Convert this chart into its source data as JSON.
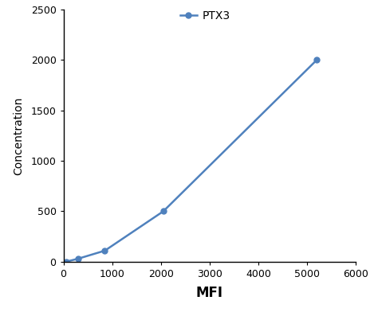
{
  "x": [
    50,
    300,
    850,
    2050,
    5200
  ],
  "y": [
    0,
    30,
    110,
    500,
    2000
  ],
  "line_color": "#4f81bd",
  "marker": "o",
  "marker_size": 5,
  "line_width": 1.8,
  "xlabel": "MFI",
  "ylabel": "Concentration",
  "xlim": [
    0,
    6000
  ],
  "ylim": [
    0,
    2500
  ],
  "xticks": [
    0,
    1000,
    2000,
    3000,
    4000,
    5000,
    6000
  ],
  "yticks": [
    0,
    500,
    1000,
    1500,
    2000,
    2500
  ],
  "legend_label": "PTX3",
  "xlabel_fontsize": 12,
  "ylabel_fontsize": 10,
  "tick_fontsize": 9,
  "legend_fontsize": 10,
  "background_color": "#ffffff",
  "spine_color": "#000000"
}
